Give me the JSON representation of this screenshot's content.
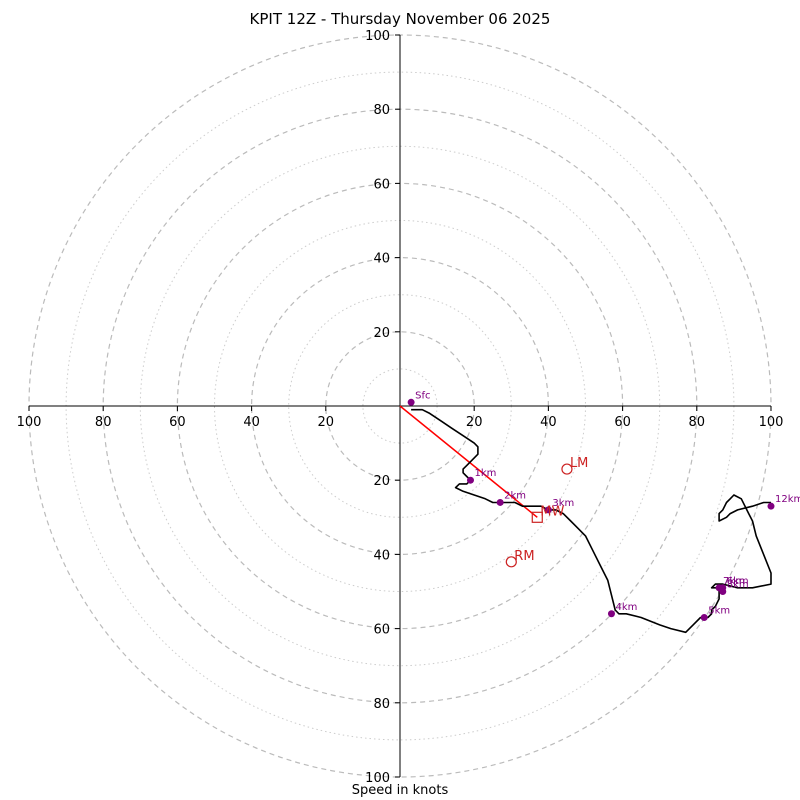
{
  "chart_data": {
    "type": "hodograph",
    "title": "KPIT 12Z - Thursday November 06 2025",
    "xlabel": "Speed in knots",
    "max_speed": 100,
    "ring_step": 10,
    "axis_ticks": [
      20,
      40,
      60,
      80,
      100
    ],
    "axis_tick_labels": [
      "20",
      "40",
      "60",
      "80",
      "100"
    ],
    "colors": {
      "trace": "#000000",
      "marker": "#800080",
      "motion": "#cc2222",
      "grid": "#bbbbbb"
    },
    "trace": [
      [
        3,
        -1
      ],
      [
        6,
        -1
      ],
      [
        8,
        -2
      ],
      [
        11,
        -4
      ],
      [
        14,
        -6
      ],
      [
        17,
        -8
      ],
      [
        20,
        -10
      ],
      [
        21,
        -11
      ],
      [
        21,
        -13
      ],
      [
        20,
        -14
      ],
      [
        18,
        -16
      ],
      [
        17,
        -17
      ],
      [
        17,
        -18
      ],
      [
        18,
        -19
      ],
      [
        19,
        -20
      ],
      [
        18,
        -21
      ],
      [
        16,
        -21
      ],
      [
        15,
        -22
      ],
      [
        17,
        -23
      ],
      [
        20,
        -24
      ],
      [
        23,
        -25
      ],
      [
        25,
        -26
      ],
      [
        27,
        -26
      ],
      [
        29,
        -26
      ],
      [
        31,
        -26
      ],
      [
        33,
        -27
      ],
      [
        36,
        -27
      ],
      [
        38,
        -27
      ],
      [
        40,
        -28
      ],
      [
        42,
        -28
      ],
      [
        44,
        -29
      ],
      [
        46,
        -31
      ],
      [
        48,
        -33
      ],
      [
        50,
        -35
      ],
      [
        52,
        -39
      ],
      [
        54,
        -43
      ],
      [
        56,
        -47
      ],
      [
        57,
        -51
      ],
      [
        58,
        -55
      ],
      [
        59,
        -56
      ],
      [
        61,
        -56
      ],
      [
        65,
        -57
      ],
      [
        70,
        -59
      ],
      [
        73,
        -60
      ],
      [
        77,
        -61
      ],
      [
        79,
        -59
      ],
      [
        81,
        -57
      ],
      [
        82,
        -57
      ],
      [
        83,
        -57
      ],
      [
        84,
        -56
      ],
      [
        84,
        -55
      ],
      [
        85,
        -54
      ],
      [
        86,
        -52
      ],
      [
        86,
        -51
      ],
      [
        86,
        -50
      ],
      [
        86,
        -49
      ],
      [
        85,
        -49
      ],
      [
        84,
        -49
      ],
      [
        85,
        -48
      ],
      [
        87,
        -48
      ],
      [
        91,
        -49
      ],
      [
        95,
        -49
      ],
      [
        100,
        -48
      ],
      [
        100,
        -45
      ],
      [
        98,
        -40
      ],
      [
        96,
        -35
      ],
      [
        95,
        -31
      ],
      [
        94,
        -29
      ],
      [
        92,
        -25
      ],
      [
        90,
        -24
      ],
      [
        89,
        -25
      ],
      [
        88,
        -26
      ],
      [
        87,
        -28
      ],
      [
        86,
        -29
      ],
      [
        86,
        -31
      ],
      [
        88,
        -30
      ],
      [
        89,
        -29
      ],
      [
        91,
        -28
      ],
      [
        95,
        -27
      ],
      [
        98,
        -26
      ],
      [
        100,
        -26
      ]
    ],
    "height_markers": [
      {
        "label": "Sfc",
        "u": 3,
        "v": 1
      },
      {
        "label": "1km",
        "u": 19,
        "v": -20
      },
      {
        "label": "2km",
        "u": 27,
        "v": -26
      },
      {
        "label": "3km",
        "u": 40,
        "v": -28
      },
      {
        "label": "4km",
        "u": 57,
        "v": -56
      },
      {
        "label": "5km",
        "u": 82,
        "v": -57
      },
      {
        "label": "6km",
        "u": 87,
        "v": -49
      },
      {
        "label": "7km",
        "u": 86,
        "v": -49
      },
      {
        "label": "8km",
        "u": 87,
        "v": -50
      },
      {
        "label": "12km",
        "u": 100,
        "v": -27
      }
    ],
    "motion_markers": [
      {
        "label": "LM",
        "u": 45,
        "v": -17,
        "shape": "circle"
      },
      {
        "label": "RM",
        "u": 30,
        "v": -42,
        "shape": "circle"
      },
      {
        "label": "MW",
        "u": 37,
        "v": -30,
        "shape": "square"
      }
    ],
    "shear_line": [
      [
        0,
        0
      ],
      [
        37,
        -30
      ]
    ]
  }
}
